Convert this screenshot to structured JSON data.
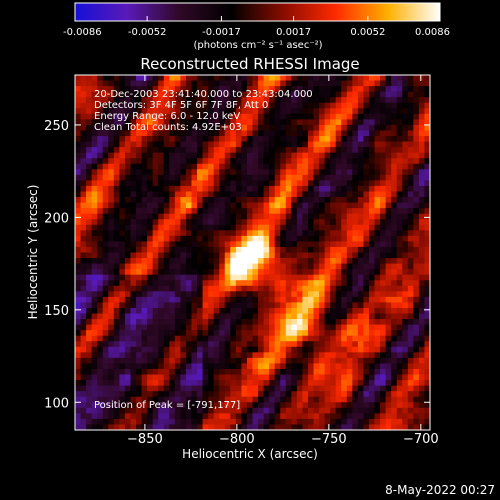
{
  "colorbar": {
    "ticks": [
      -0.0086,
      -0.0052,
      -0.0017,
      0.0017,
      0.0052,
      0.0086
    ],
    "tick_labels": [
      "-0.0086",
      "-0.0052",
      "-0.0017",
      "0.0017",
      "0.0052",
      "0.0086"
    ],
    "units": "(photons cm⁻² s⁻¹ asec⁻²)",
    "colormap": [
      "#1410d8",
      "#5a1ab8",
      "#300826",
      "#000000",
      "#8a0c00",
      "#ff2a00",
      "#ffb000",
      "#ffffff"
    ]
  },
  "chart_data": {
    "type": "heatmap",
    "title": "Reconstructed RHESSI Image",
    "xlabel": "Heliocentric X (arcsec)",
    "ylabel": "Heliocentric Y (arcsec)",
    "xlim": [
      -888,
      -695
    ],
    "ylim": [
      85,
      277
    ],
    "xticks": [
      -850,
      -800,
      -750,
      -700
    ],
    "yticks": [
      100,
      150,
      200,
      250
    ],
    "xtick_labels": [
      "−850",
      "−800",
      "−750",
      "−700"
    ],
    "ytick_labels": [
      "100",
      "150",
      "200",
      "250"
    ],
    "value_range": [
      -0.0086,
      0.0086
    ],
    "peak": {
      "x": -791,
      "y": 177
    },
    "annotations": [
      "20-Dec-2003 23:41:40.000 to 23:43:04.000",
      "Detectors: 3F 4F 5F 6F 7F 8F, Att 0",
      "Energy Range: 6.0 - 12.0 keV",
      "Clean     Total counts: 4.92E+03"
    ],
    "peak_label": "Position of Peak = [-791,177]"
  },
  "footer": {
    "date": "8-May-2022 00:27"
  }
}
